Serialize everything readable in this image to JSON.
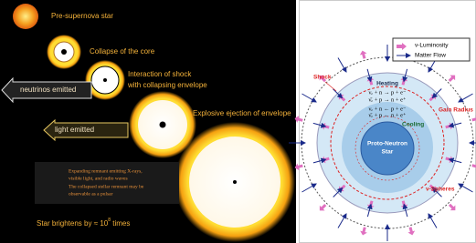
{
  "left_panel": {
    "stages": [
      "Pre-supernova star",
      "Collapse of the core",
      "Interaction of shock",
      "with collapsing envelope",
      "Explosive ejection of envelope"
    ],
    "arrows": [
      "neutrinos emitted",
      "light emitted"
    ],
    "remnant_note": [
      "Expanding remnant emitting X-rays,",
      "visible light, and radio waves",
      "The collapsed stellar remnant may be",
      "observable as a pulsar"
    ],
    "brightening": {
      "text": "Star brightens by",
      "approx": "≈",
      "base": "10",
      "exponent": "8",
      "unit": "times"
    }
  },
  "right_panel": {
    "legend": [
      "ν-Luminosity",
      "Matter Flow"
    ],
    "heating": {
      "title": "Heating",
      "equations": [
        "νₑ + n → p + e⁻",
        "ν̄ₑ + p → n + e⁺"
      ]
    },
    "cooling": {
      "title": "Cooling",
      "equations": [
        "νₑ + n ← p + e⁻",
        "ν̄ₑ + p ← n + e⁺"
      ]
    },
    "labels": {
      "shock": "Shock",
      "gain_radius": "Gain Radius",
      "core": [
        "Proto-Neutron",
        "Star"
      ],
      "spheres": "ν-Spheres"
    }
  }
}
